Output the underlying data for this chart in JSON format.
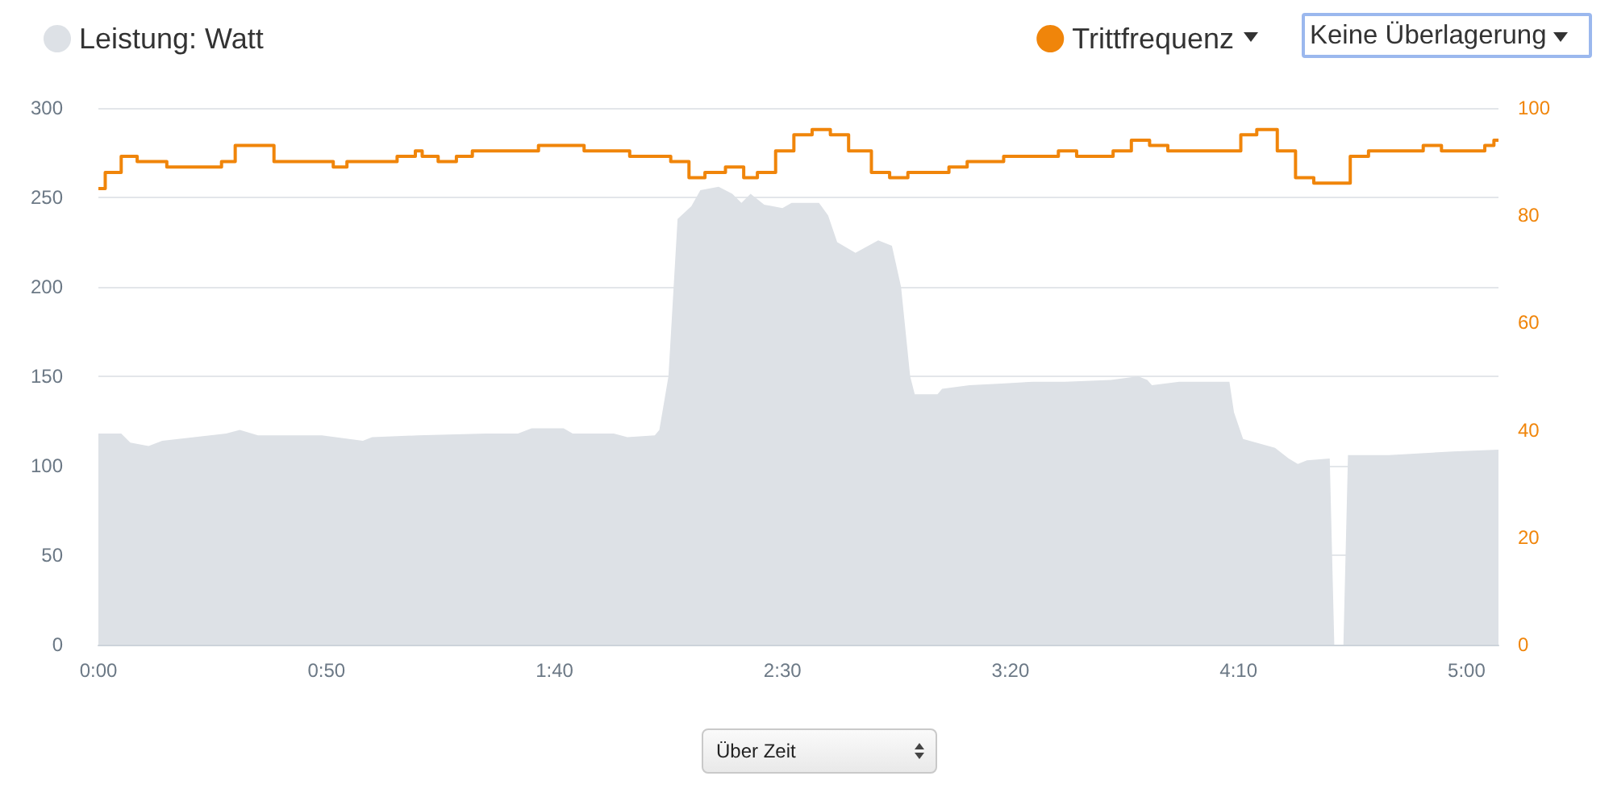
{
  "chart_data": {
    "type": "area",
    "legend": "top",
    "grid": "y",
    "marker": "none",
    "xlim": [
      0,
      307
    ],
    "xticks": [
      {
        "value": 0,
        "label": "0:00"
      },
      {
        "value": 50,
        "label": "0:50"
      },
      {
        "value": 100,
        "label": "1:40"
      },
      {
        "value": 150,
        "label": "2:30"
      },
      {
        "value": 200,
        "label": "3:20"
      },
      {
        "value": 250,
        "label": "4:10"
      },
      {
        "value": 300,
        "label": "5:00"
      }
    ],
    "ylim": [
      0,
      300
    ],
    "yticks": [
      0,
      50,
      100,
      150,
      200,
      250,
      300
    ],
    "y2lim": [
      0,
      100
    ],
    "y2ticks": [
      0,
      20,
      40,
      60,
      80,
      100
    ],
    "annotations": [
      "Keine Überlagerung",
      "Über Zeit"
    ],
    "series": [
      {
        "name": "Leistung: Watt",
        "color": "#dde1e6",
        "x": [
          0,
          5,
          7,
          11,
          14,
          21,
          28,
          31,
          35,
          49,
          58,
          60,
          70,
          85,
          92,
          95,
          102,
          104,
          113,
          116,
          122,
          123,
          125,
          127,
          130,
          132,
          136,
          139,
          141,
          143,
          146,
          150,
          152,
          158,
          160,
          162,
          166,
          171,
          174,
          176,
          178,
          179,
          184,
          185,
          191,
          198,
          205,
          212,
          222,
          228,
          230,
          231,
          237,
          248,
          249,
          251,
          258,
          261,
          263,
          265,
          270,
          271,
          273,
          274,
          283,
          297,
          307
        ],
        "values": [
          118,
          118,
          113,
          111,
          114,
          116,
          118,
          120,
          117,
          117,
          114,
          116,
          117,
          118,
          118,
          121,
          121,
          118,
          118,
          116,
          117,
          120,
          150,
          238,
          245,
          254,
          256,
          252,
          247,
          252,
          246,
          244,
          247,
          247,
          240,
          225,
          219,
          226,
          223,
          200,
          150,
          140,
          140,
          143,
          145,
          146,
          147,
          147,
          148,
          150,
          148,
          145,
          147,
          147,
          130,
          115,
          110,
          104,
          101,
          103,
          104,
          0,
          0,
          106,
          106,
          108,
          109
        ]
      },
      {
        "name": "Trittfrequenz",
        "type": "step",
        "axis": "y2",
        "color": "#f0850a",
        "x": [
          0,
          1.5,
          5,
          8.5,
          15,
          27,
          30,
          38.5,
          51.5,
          54.5,
          65.5,
          69.5,
          71,
          74.5,
          78.5,
          82,
          96.5,
          106.5,
          116.5,
          125.5,
          129.5,
          133,
          137.5,
          141.5,
          144.5,
          148.5,
          152.5,
          156.5,
          160.5,
          164.5,
          169.5,
          173.5,
          177.5,
          186.5,
          190.5,
          198.5,
          210.5,
          214.5,
          222.5,
          226.5,
          230.5,
          234.5,
          250.5,
          254,
          258.5,
          262.5,
          266.5,
          274.5,
          278.5,
          290.5,
          294.5,
          304,
          306,
          307
        ],
        "values": [
          85,
          88,
          91,
          90,
          89,
          90,
          93,
          90,
          89,
          90,
          91,
          92,
          91,
          90,
          91,
          92,
          93,
          92,
          91,
          90,
          87,
          88,
          89,
          87,
          88,
          92,
          95,
          96,
          95,
          92,
          88,
          87,
          88,
          89,
          90,
          91,
          92,
          91,
          92,
          94,
          93,
          92,
          95,
          96,
          92,
          87,
          86,
          91,
          92,
          93,
          92,
          93,
          94,
          94
        ]
      }
    ]
  }
}
